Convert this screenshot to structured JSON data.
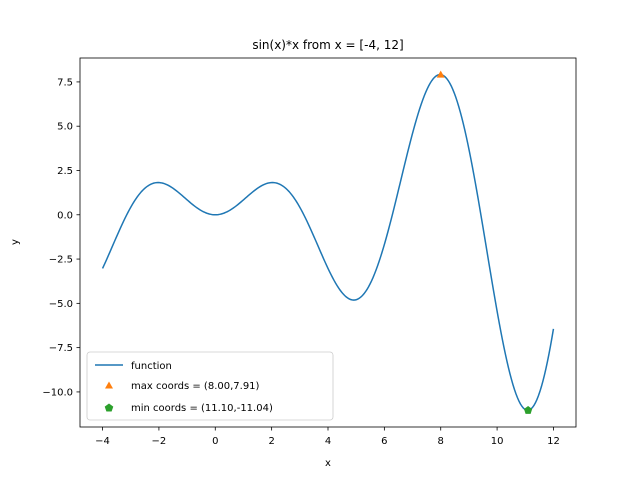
{
  "chart_data": {
    "type": "line",
    "title": "sin(x)*x from x = [-4, 12]",
    "xlabel": "x",
    "ylabel": "y",
    "xlim": [
      -4.8,
      12.8
    ],
    "ylim": [
      -11.98,
      8.85
    ],
    "x_ticks": [
      -4,
      -2,
      0,
      2,
      4,
      6,
      8,
      10,
      12
    ],
    "x_tick_labels": [
      "−4",
      "−2",
      "0",
      "2",
      "4",
      "6",
      "8",
      "10",
      "12"
    ],
    "y_ticks": [
      7.5,
      5.0,
      2.5,
      0.0,
      -2.5,
      -5.0,
      -7.5,
      -10.0
    ],
    "y_tick_labels": [
      "7.5",
      "5.0",
      "2.5",
      "0.0",
      "−2.5",
      "−5.0",
      "−7.5",
      "−10.0"
    ],
    "grid": false,
    "legend_position": "lower-left",
    "series": [
      {
        "name": "function",
        "kind": "line",
        "color": "#1f77b4",
        "function": "sin(x)*x",
        "x_range": [
          -4,
          12
        ],
        "samples": 300
      },
      {
        "name": "max coords = (8.00,7.91)",
        "kind": "marker",
        "marker": "triangle",
        "color": "#ff7f0e",
        "x": [
          8.0
        ],
        "y": [
          7.91
        ]
      },
      {
        "name": "min coords = (11.10,-11.04)",
        "kind": "marker",
        "marker": "pentagon",
        "color": "#2ca02c",
        "x": [
          11.1
        ],
        "y": [
          -11.04
        ]
      }
    ]
  }
}
